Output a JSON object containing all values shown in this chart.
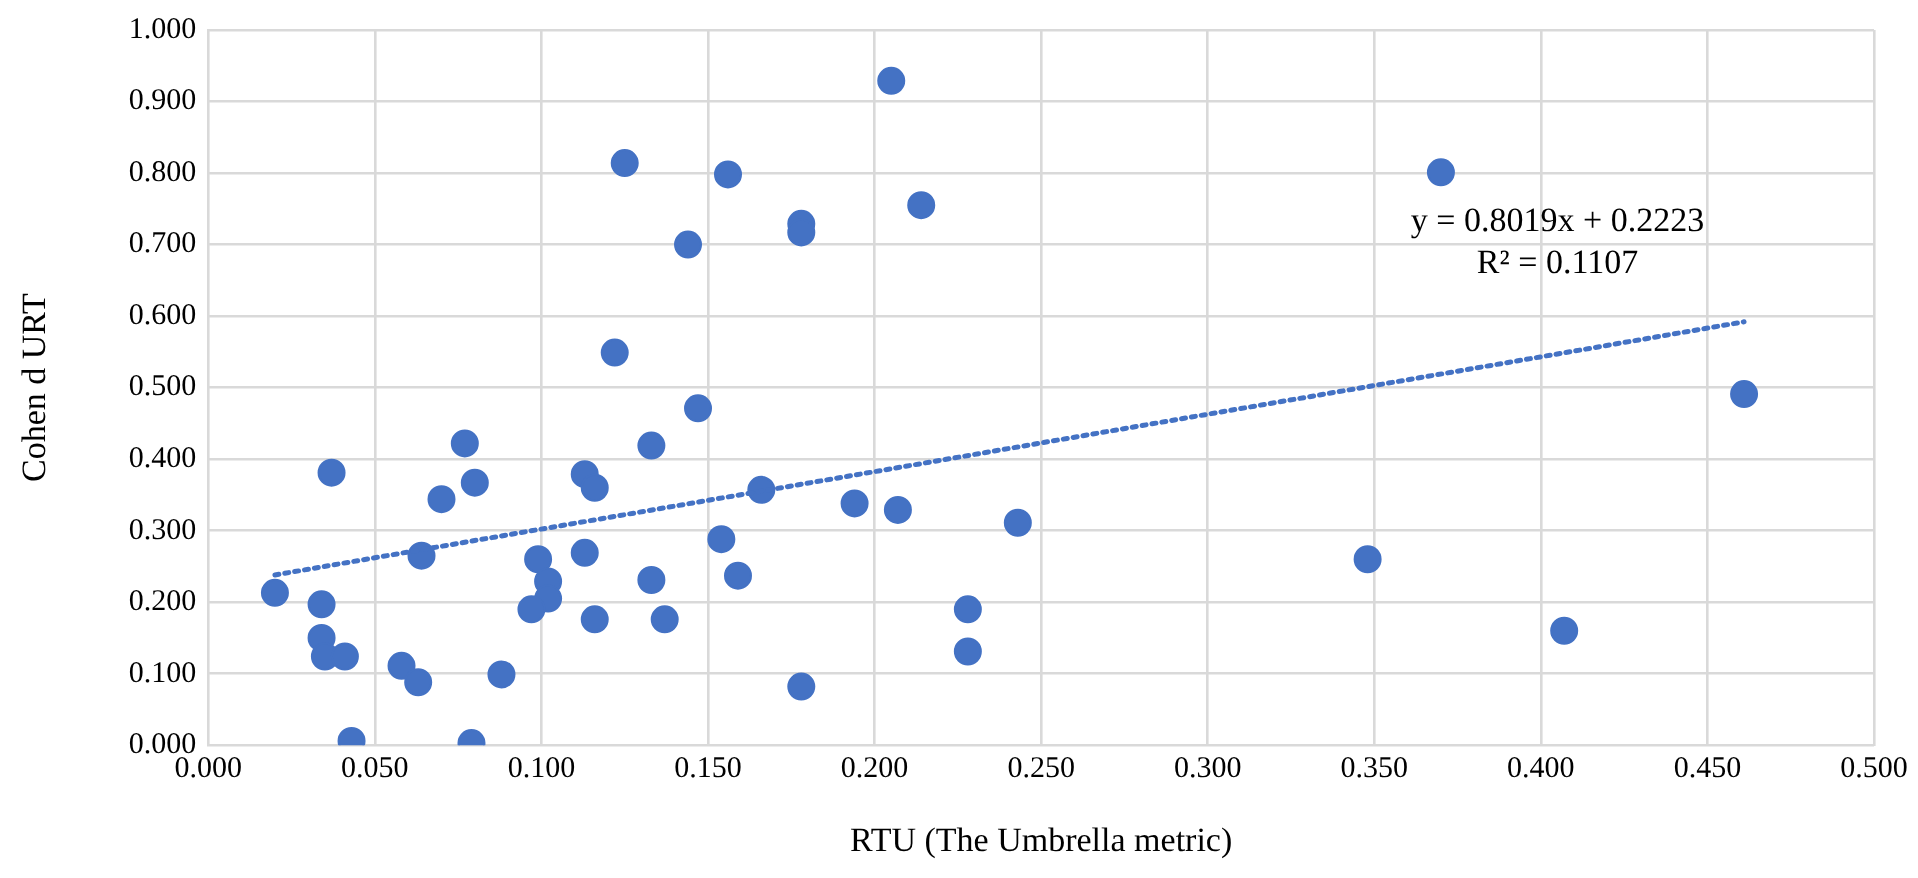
{
  "chart_data": {
    "type": "scatter",
    "xlabel": "RTU (The Umbrella metric)",
    "ylabel": "Cohen d URT",
    "color": "#4472c4",
    "marker": "circle",
    "grid": true,
    "legend": false,
    "x": [
      0.205,
      0.125,
      0.156,
      0.144,
      0.178,
      0.178,
      0.214,
      0.122,
      0.147,
      0.133,
      0.077,
      0.037,
      0.08,
      0.07,
      0.113,
      0.116,
      0.166,
      0.194,
      0.207,
      0.243,
      0.064,
      0.099,
      0.113,
      0.154,
      0.159,
      0.133,
      0.102,
      0.102,
      0.097,
      0.116,
      0.137,
      0.02,
      0.034,
      0.034,
      0.035,
      0.041,
      0.058,
      0.063,
      0.088,
      0.178,
      0.043,
      0.079,
      0.228,
      0.228,
      0.37,
      0.348,
      0.407,
      0.461
    ],
    "values": [
      0.929,
      0.814,
      0.798,
      0.7,
      0.729,
      0.717,
      0.755,
      0.549,
      0.471,
      0.419,
      0.422,
      0.381,
      0.367,
      0.344,
      0.379,
      0.36,
      0.357,
      0.338,
      0.329,
      0.311,
      0.265,
      0.26,
      0.269,
      0.288,
      0.237,
      0.231,
      0.229,
      0.205,
      0.19,
      0.176,
      0.176,
      0.213,
      0.197,
      0.15,
      0.124,
      0.124,
      0.111,
      0.088,
      0.099,
      0.082,
      0.006,
      0.003,
      0.19,
      0.131,
      0.801,
      0.26,
      0.16,
      0.491
    ],
    "series": [
      {
        "type": "line",
        "x": [
          0.02,
          0.461
        ],
        "values": [
          0.238,
          0.592
        ],
        "color": "#4472c4",
        "line_style": "dotted",
        "marker": "none"
      }
    ],
    "annotations": [
      "y = 0.8019x + 0.2223",
      "R² = 0.1107"
    ],
    "xlim": [
      0,
      0.5
    ],
    "xticks": [
      {
        "value": 0,
        "label": "0.000"
      },
      {
        "value": 0.05,
        "label": "0.050"
      },
      {
        "value": 0.1,
        "label": "0.100"
      },
      {
        "value": 0.15,
        "label": "0.150"
      },
      {
        "value": 0.2,
        "label": "0.200"
      },
      {
        "value": 0.25,
        "label": "0.250"
      },
      {
        "value": 0.3,
        "label": "0.300"
      },
      {
        "value": 0.35,
        "label": "0.350"
      },
      {
        "value": 0.4,
        "label": "0.400"
      },
      {
        "value": 0.45,
        "label": "0.450"
      },
      {
        "value": 0.5,
        "label": "0.500"
      }
    ],
    "ylim": [
      0,
      1
    ],
    "yticks": [
      {
        "value": 0,
        "label": "0.000"
      },
      {
        "value": 0.1,
        "label": "0.100"
      },
      {
        "value": 0.2,
        "label": "0.200"
      },
      {
        "value": 0.3,
        "label": "0.300"
      },
      {
        "value": 0.4,
        "label": "0.400"
      },
      {
        "value": 0.5,
        "label": "0.500"
      },
      {
        "value": 0.6,
        "label": "0.600"
      },
      {
        "value": 0.7,
        "label": "0.700"
      },
      {
        "value": 0.8,
        "label": "0.800"
      },
      {
        "value": 0.9,
        "label": "0.900"
      },
      {
        "value": 1,
        "label": "1.000"
      }
    ]
  }
}
